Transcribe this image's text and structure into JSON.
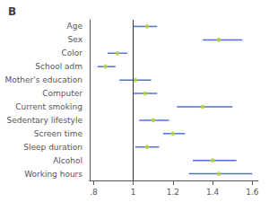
{
  "chart_data": {
    "type": "forest",
    "title": "B",
    "categories": [
      "Age",
      "Sex",
      "Color",
      "School adm",
      "Mother's education",
      "Computer",
      "Current smoking",
      "Sedentary lifestyle",
      "Screen time",
      "Sleep duration",
      "Alcohol",
      "Working hours"
    ],
    "values": [
      1.07,
      1.43,
      0.92,
      0.86,
      1.01,
      1.06,
      1.35,
      1.1,
      1.2,
      1.07,
      1.4,
      1.43
    ],
    "ci_low": [
      1.0,
      1.35,
      0.87,
      0.82,
      0.93,
      1.0,
      1.22,
      1.03,
      1.15,
      1.01,
      1.3,
      1.28
    ],
    "ci_high": [
      1.12,
      1.55,
      0.97,
      0.91,
      1.09,
      1.12,
      1.5,
      1.18,
      1.26,
      1.13,
      1.52,
      1.6
    ],
    "xlim": [
      0.78,
      1.63
    ],
    "xticks": [
      {
        "value": 0.8,
        "label": ".8"
      },
      1,
      1.2,
      1.4,
      1.6
    ],
    "ref_line": 1,
    "grid": false
  }
}
